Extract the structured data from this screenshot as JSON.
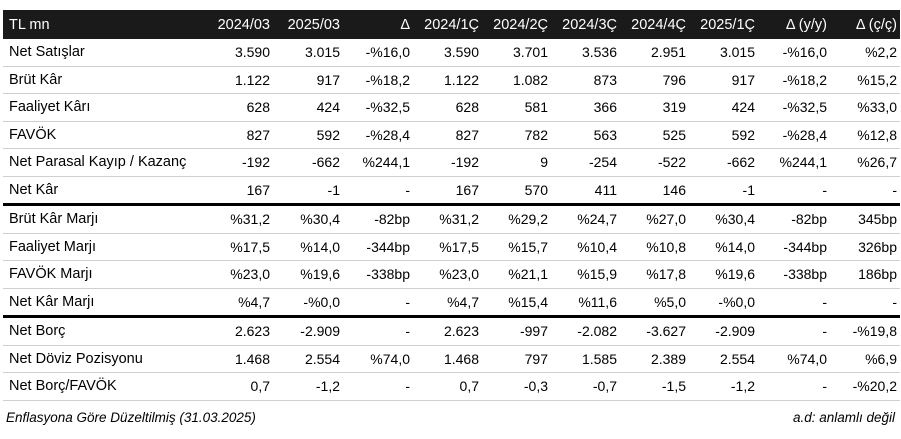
{
  "table": {
    "columns": [
      "TL mn",
      "2024/03",
      "2025/03",
      "Δ",
      "2024/1Ç",
      "2024/2Ç",
      "2024/3Ç",
      "2024/4Ç",
      "2025/1Ç",
      "Δ (y/y)",
      "Δ (ç/ç)"
    ],
    "rows": [
      {
        "label": "Net Satışlar",
        "cells": [
          "3.590",
          "3.015",
          "-%16,0",
          "3.590",
          "3.701",
          "3.536",
          "2.951",
          "3.015",
          "-%16,0",
          "%2,2"
        ]
      },
      {
        "label": "Brüt Kâr",
        "cells": [
          "1.122",
          "917",
          "-%18,2",
          "1.122",
          "1.082",
          "873",
          "796",
          "917",
          "-%18,2",
          "%15,2"
        ]
      },
      {
        "label": "Faaliyet Kârı",
        "cells": [
          "628",
          "424",
          "-%32,5",
          "628",
          "581",
          "366",
          "319",
          "424",
          "-%32,5",
          "%33,0"
        ]
      },
      {
        "label": "FAVÖK",
        "cells": [
          "827",
          "592",
          "-%28,4",
          "827",
          "782",
          "563",
          "525",
          "592",
          "-%28,4",
          "%12,8"
        ]
      },
      {
        "label": "Net Parasal Kayıp / Kazanç",
        "cells": [
          "-192",
          "-662",
          "%244,1",
          "-192",
          "9",
          "-254",
          "-522",
          "-662",
          "%244,1",
          "%26,7"
        ]
      },
      {
        "label": "Net Kâr",
        "cells": [
          "167",
          "-1",
          "-",
          "167",
          "570",
          "411",
          "146",
          "-1",
          "-",
          "-"
        ]
      },
      {
        "label": "Brüt Kâr Marjı",
        "cells": [
          "%31,2",
          "%30,4",
          "-82bp",
          "%31,2",
          "%29,2",
          "%24,7",
          "%27,0",
          "%30,4",
          "-82bp",
          "345bp"
        ]
      },
      {
        "label": "Faaliyet Marjı",
        "cells": [
          "%17,5",
          "%14,0",
          "-344bp",
          "%17,5",
          "%15,7",
          "%10,4",
          "%10,8",
          "%14,0",
          "-344bp",
          "326bp"
        ]
      },
      {
        "label": "FAVÖK Marjı",
        "cells": [
          "%23,0",
          "%19,6",
          "-338bp",
          "%23,0",
          "%21,1",
          "%15,9",
          "%17,8",
          "%19,6",
          "-338bp",
          "186bp"
        ]
      },
      {
        "label": "Net Kâr Marjı",
        "cells": [
          "%4,7",
          "-%0,0",
          "-",
          "%4,7",
          "%15,4",
          "%11,6",
          "%5,0",
          "-%0,0",
          "-",
          "-"
        ]
      },
      {
        "label": "Net Borç",
        "cells": [
          "2.623",
          "-2.909",
          "-",
          "2.623",
          "-997",
          "-2.082",
          "-3.627",
          "-2.909",
          "-",
          "-%19,8"
        ]
      },
      {
        "label": "Net Döviz Pozisyonu",
        "cells": [
          "1.468",
          "2.554",
          "%74,0",
          "1.468",
          "797",
          "1.585",
          "2.389",
          "2.554",
          "%74,0",
          "%6,9"
        ]
      },
      {
        "label": "Net Borç/FAVÖK",
        "cells": [
          "0,7",
          "-1,2",
          "-",
          "0,7",
          "-0,3",
          "-0,7",
          "-1,5",
          "-1,2",
          "-",
          "-%20,2"
        ]
      }
    ]
  },
  "footer": {
    "left": "Enflasyona Göre Düzeltilmiş (31.03.2025)",
    "right": "a.d: anlamlı değil"
  }
}
